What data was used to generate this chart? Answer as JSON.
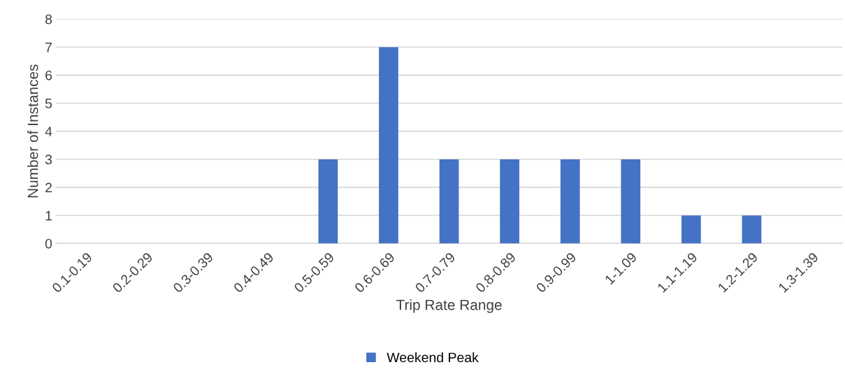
{
  "chart_data": {
    "type": "bar",
    "xlabel": "Trip Rate Range",
    "ylabel": "Number of Instances",
    "categories": [
      "0.1-0.19",
      "0.2-0.29",
      "0.3-0.39",
      "0.4-0.49",
      "0.5-0.59",
      "0.6-0.69",
      "0.7-0.79",
      "0.8-0.89",
      "0.9-0.99",
      "1-1.09",
      "1.1-1.19",
      "1.2-1.29",
      "1.3-1.39"
    ],
    "series": [
      {
        "name": "Weekend Peak",
        "color": "#4472c4",
        "values": [
          0,
          0,
          0,
          0,
          3,
          7,
          3,
          3,
          3,
          3,
          1,
          1,
          0
        ]
      }
    ],
    "ylim": [
      0,
      8
    ],
    "yticks": [
      0,
      1,
      2,
      3,
      4,
      5,
      6,
      7,
      8
    ],
    "grid": "y",
    "legend": "bottom"
  }
}
